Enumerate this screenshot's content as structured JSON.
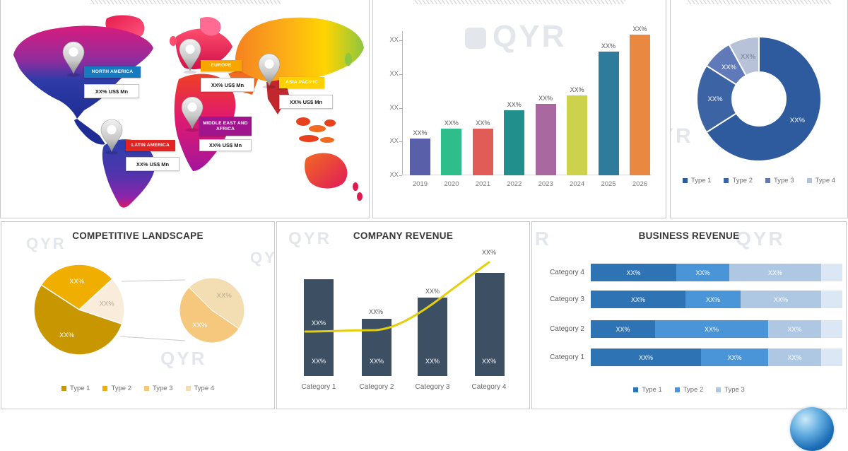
{
  "watermark": {
    "full": "QYR",
    "partial_r": "R",
    "partial_yr": "YR"
  },
  "chart_data": [
    {
      "type": "map",
      "regions": [
        {
          "name": "NORTH AMERICA",
          "value": "XX% US$ Mn",
          "color": "#1779be"
        },
        {
          "name": "EUROPE",
          "value": "XX% US$ Mn",
          "color": "#f7a600"
        },
        {
          "name": "ASIA PACIFIC",
          "value": "XX% US$ Mn",
          "color": "#fdd000"
        },
        {
          "name": "MIDDLE EAST AND AFRICA",
          "value": "XX% US$ Mn",
          "color": "#a0148e"
        },
        {
          "name": "LATIN AMERICA",
          "value": "XX% US$ Mn",
          "color": "#e32322"
        }
      ]
    },
    {
      "type": "bar",
      "categories": [
        "2019",
        "2020",
        "2021",
        "2022",
        "2023",
        "2024",
        "2025",
        "2026"
      ],
      "bar_labels": [
        "XX%",
        "XX%",
        "XX%",
        "XX%",
        "XX%",
        "XX%",
        "XX%",
        "XX%"
      ],
      "values_pct_of_max": [
        26,
        33,
        33,
        46,
        51,
        57,
        88,
        100
      ],
      "yticks": [
        "XX",
        "XX",
        "XX",
        "XX",
        "XX"
      ],
      "colors": [
        "#5a5fa9",
        "#2fbe8b",
        "#e15b57",
        "#21908c",
        "#a9689f",
        "#cdd24d",
        "#2f7b9b",
        "#e98840"
      ],
      "grid": false,
      "legend_position": "none"
    },
    {
      "type": "pie",
      "subtype": "donut",
      "values": [
        66,
        18,
        8,
        8
      ],
      "slice_labels": [
        "XX%",
        "XX%",
        "XX%",
        "XX%"
      ],
      "slice_colors": [
        "#2e5b9e",
        "#3c63a4",
        "#6079b8",
        "#b7c1d8"
      ],
      "label_colors": [
        "#ffffff",
        "#ffffff",
        "#ffffff",
        "#707a92"
      ],
      "legend": [
        {
          "label": "Type 1",
          "color": "#2e5b9e"
        },
        {
          "label": "Type 2",
          "color": "#3c63a4"
        },
        {
          "label": "Type 3",
          "color": "#6079b8"
        },
        {
          "label": "Type 4",
          "color": "#b7c1d8"
        }
      ],
      "legend_position": "bottom"
    },
    {
      "type": "pie",
      "subtype": "pie-of-pie",
      "title": "COMPETITIVE LANDSCAPE",
      "main": {
        "start_angle": -57,
        "values": [
          29,
          17,
          54
        ],
        "labels": [
          "XX%",
          "XX%",
          "XX%"
        ],
        "colors": [
          "#f0ae00",
          "#f9ecdb",
          "#c89700"
        ],
        "label_colors": [
          "#ffffff",
          "#b5a992",
          "#ffffff"
        ]
      },
      "secondary": {
        "start_angle": 315,
        "values": [
          47,
          53
        ],
        "labels": [
          "XX%",
          "XX%"
        ],
        "colors": [
          "#f3ddb2",
          "#f6c87e"
        ],
        "label_colors": [
          "#b5a992",
          "#ffffff"
        ]
      },
      "legend": [
        {
          "label": "Type 1",
          "color": "#c89700"
        },
        {
          "label": "Type 2",
          "color": "#f0ae00"
        },
        {
          "label": "Type 3",
          "color": "#f6c87e"
        },
        {
          "label": "Type 4",
          "color": "#f3ddb2"
        }
      ],
      "legend_position": "bottom"
    },
    {
      "type": "bar",
      "subtype": "bar-with-line",
      "title": "COMPANY REVENUE",
      "categories": [
        "Category 1",
        "Category 2",
        "Category 3",
        "Category 4"
      ],
      "bar_values_rel": [
        63,
        37,
        51,
        67
      ],
      "bar_labels": [
        "XX%",
        "XX%",
        "XX%",
        "XX%"
      ],
      "line_values_rel": [
        29,
        30,
        47,
        74
      ],
      "line_labels": [
        "XX%",
        "XX%",
        "XX%",
        "XX%"
      ],
      "bar_color": "#3d4f63",
      "line_color": "#e3cf0c",
      "legend_position": "none"
    },
    {
      "type": "bar",
      "subtype": "stacked-horizontal",
      "title": "BUSINESS REVENUE",
      "categories": [
        "Category 4",
        "Category 3",
        "Category 2",
        "Category 1"
      ],
      "series": [
        {
          "name": "Type 1",
          "color": "#2e74b5",
          "values": [
            37,
            41,
            28,
            48
          ]
        },
        {
          "name": "Type 2",
          "color": "#4a94d8",
          "values": [
            23,
            24,
            49,
            29
          ]
        },
        {
          "name": "Type 3",
          "color": "#aec8e4",
          "values": [
            40,
            35,
            23,
            23
          ]
        }
      ],
      "segment_label": "XX%",
      "legend": [
        {
          "label": "Type 1",
          "color": "#2e74b5"
        },
        {
          "label": "Type 2",
          "color": "#4a94d8"
        },
        {
          "label": "Type 3",
          "color": "#aec8e4"
        }
      ],
      "legend_position": "bottom"
    }
  ]
}
